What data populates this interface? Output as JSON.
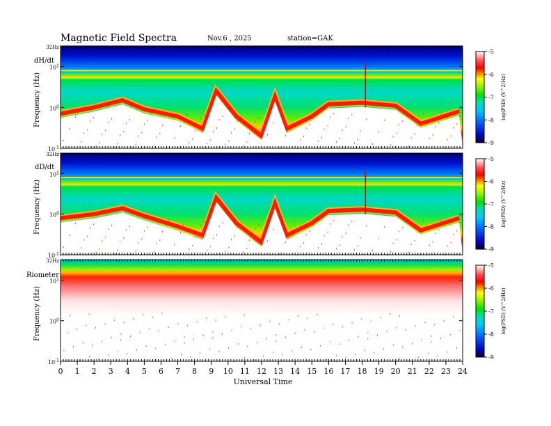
{
  "header": {
    "title": "Magnetic  Field  Spectra",
    "date": "Nov.6  , 2025",
    "station": "station=GAK"
  },
  "colorbar": {
    "ticks": [
      "-5",
      "-6",
      "-7",
      "-8",
      "-9"
    ],
    "label": "log(PSD) (V^2/Hz)"
  },
  "chart_data": [
    {
      "type": "heatmap",
      "panel": "dH/dt",
      "ylabel": "Frequency  (Hz)",
      "yticks": [
        "32Hz",
        "10^1",
        "10^0",
        "10^-1"
      ],
      "xlim": [
        0,
        24
      ],
      "zlim": [
        -9,
        -5
      ],
      "description_of_field": "log10 PSD, color scale from -9 (dark blue) to -5 (white)",
      "features": {
        "red_band_freq_hz_by_hour": [
          [
            0,
            0.7
          ],
          [
            2,
            1.0
          ],
          [
            3.7,
            1.5
          ],
          [
            5,
            0.9
          ],
          [
            7,
            0.6
          ],
          [
            8.5,
            0.3
          ],
          [
            9.3,
            2.5
          ],
          [
            10.5,
            0.6
          ],
          [
            12,
            0.2
          ],
          [
            12.8,
            1.8
          ],
          [
            13.5,
            0.3
          ],
          [
            15,
            0.6
          ],
          [
            16,
            1.2
          ],
          [
            18,
            1.3
          ],
          [
            20,
            1.1
          ],
          [
            21.5,
            0.4
          ],
          [
            23.8,
            0.8
          ]
        ],
        "line_at_freq_hz": 8.0
      }
    },
    {
      "type": "heatmap",
      "panel": "dD/dt",
      "ylabel": "Frequency  (Hz)",
      "yticks": [
        "32Hz",
        "10^1",
        "10^0",
        "10^-1"
      ],
      "xlim": [
        0,
        24
      ],
      "zlim": [
        -9,
        -5
      ],
      "features": {
        "red_band_freq_hz_by_hour": [
          [
            0,
            0.8
          ],
          [
            2,
            1.0
          ],
          [
            3.7,
            1.4
          ],
          [
            5,
            0.9
          ],
          [
            7,
            0.5
          ],
          [
            8.5,
            0.3
          ],
          [
            9.3,
            2.5
          ],
          [
            10.5,
            0.6
          ],
          [
            12,
            0.2
          ],
          [
            12.8,
            1.8
          ],
          [
            13.5,
            0.3
          ],
          [
            15,
            0.6
          ],
          [
            16,
            1.2
          ],
          [
            18,
            1.3
          ],
          [
            20,
            1.1
          ],
          [
            21.5,
            0.4
          ],
          [
            23.8,
            0.8
          ]
        ],
        "line_at_freq_hz": 8.0
      }
    },
    {
      "type": "heatmap",
      "panel": "Riometer",
      "ylabel": "Frequency  (Hz)",
      "yticks": [
        "32Hz",
        "10^1",
        "10^0",
        "10^-1"
      ],
      "xlim": [
        0,
        24
      ],
      "zlim": [
        -9,
        -5
      ],
      "features": {
        "saturated_above_freq_hz": 12
      }
    }
  ],
  "xaxis": {
    "label": "Universal  Time",
    "ticks": [
      "0",
      "1",
      "2",
      "3",
      "4",
      "5",
      "6",
      "7",
      "8",
      "9",
      "10",
      "11",
      "12",
      "13",
      "14",
      "15",
      "16",
      "17",
      "18",
      "19",
      "20",
      "21",
      "22",
      "23",
      "24"
    ]
  }
}
